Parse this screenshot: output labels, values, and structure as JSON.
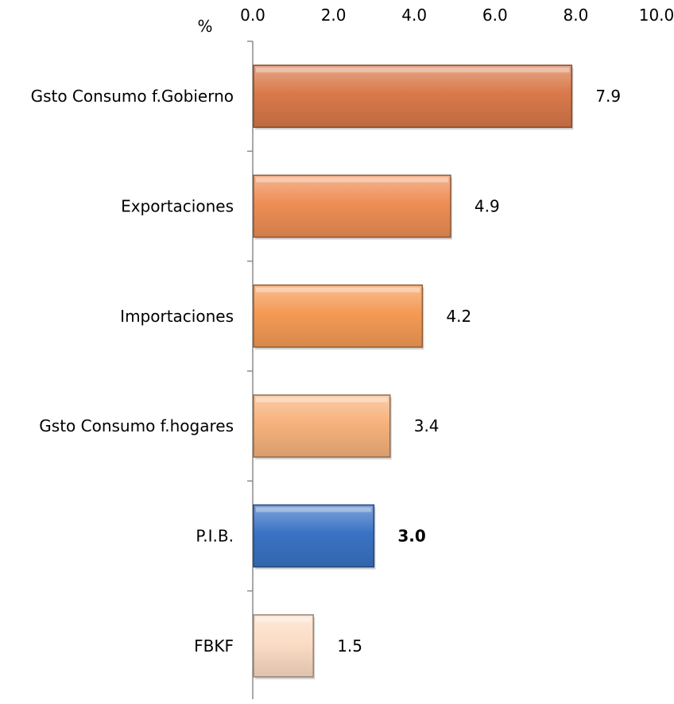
{
  "chart_data": {
    "type": "bar",
    "orientation": "horizontal",
    "unit_label": "%",
    "xlim": [
      0,
      10
    ],
    "tick_labels": [
      "0.0",
      "2.0",
      "4.0",
      "6.0",
      "8.0",
      "10.0"
    ],
    "tick_values": [
      0,
      2,
      4,
      6,
      8,
      10
    ],
    "axis_position": "top",
    "grid": false,
    "legend": "none",
    "categories": [
      "Gsto Consumo f.Gobierno",
      "Exportaciones",
      "Importaciones",
      "Gsto Consumo f.hogares",
      "P.I.B.",
      "FBKF"
    ],
    "values": [
      7.9,
      4.9,
      4.2,
      3.4,
      3.0,
      1.5
    ],
    "value_labels": [
      "7.9",
      "4.9",
      "4.2",
      "3.4",
      "3.0",
      "1.5"
    ],
    "highlight_category": "P.I.B.",
    "bar_colors": {
      "Gsto Consumo f.Gobierno": "#D9794A",
      "Exportaciones": "#EE8E55",
      "Importaciones": "#F49A55",
      "Gsto Consumo f.hogares": "#F7B27C",
      "P.I.B.": "#3A73C4",
      "FBKF": "#FCDCC5"
    }
  }
}
